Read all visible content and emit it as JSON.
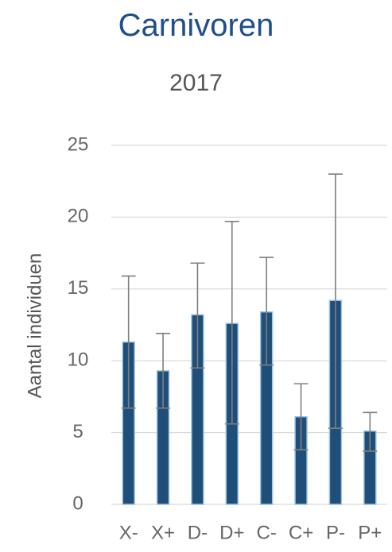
{
  "chart_data": {
    "type": "bar",
    "title": "Carnivoren",
    "subtitle": "2017",
    "xlabel": "",
    "ylabel": "Aantal individuen",
    "ylim": [
      0,
      25
    ],
    "yticks": [
      0,
      5,
      10,
      15,
      20,
      25
    ],
    "grid": true,
    "categories": [
      "X-",
      "X+",
      "D-",
      "D+",
      "C-",
      "C+",
      "P-",
      "P+"
    ],
    "values": [
      11.3,
      9.3,
      13.2,
      12.6,
      13.4,
      6.1,
      14.2,
      5.1
    ],
    "error_low": [
      6.7,
      6.7,
      9.5,
      5.6,
      9.7,
      3.8,
      5.3,
      3.7
    ],
    "error_high": [
      15.9,
      11.9,
      16.8,
      19.7,
      17.2,
      8.4,
      23.0,
      6.4
    ],
    "colors": {
      "bar": "#1f4e79",
      "bar_edge": "#9dc3e6",
      "error": "#7f7f7f",
      "grid": "#d9d9d9"
    }
  }
}
